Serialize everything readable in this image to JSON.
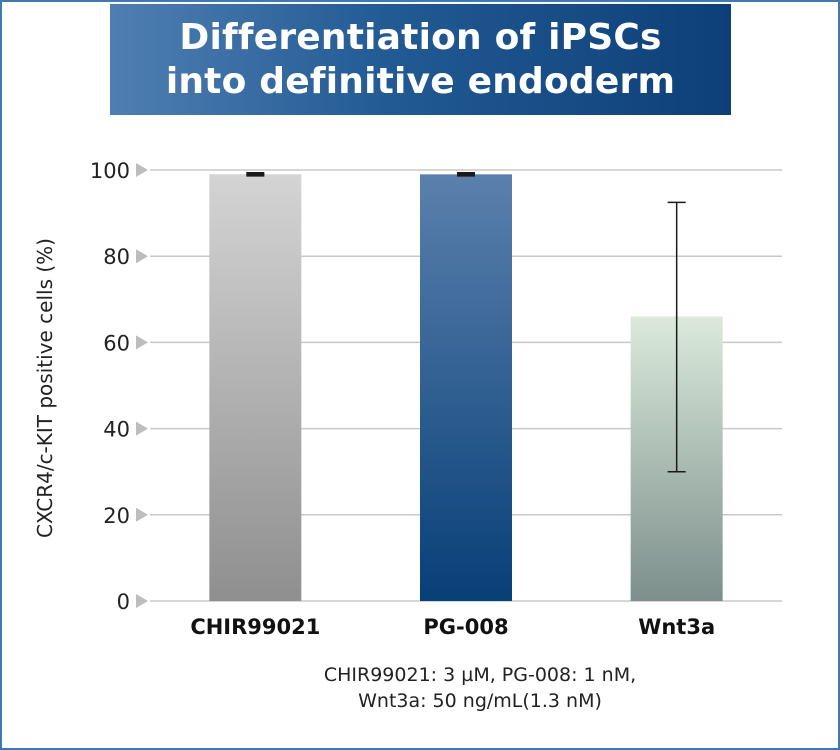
{
  "title": {
    "line1": "Differentiation of iPSCs",
    "line2": "into definitive endoderm"
  },
  "footnote": {
    "line1": "CHIR99021: 3 µM, PG-008: 1 nM,",
    "line2": "Wnt3a: 50 ng/mL(1.3 nM)"
  },
  "colors": {
    "frame": "#3f79b0",
    "title_bg_start": "#4f7fb2",
    "title_bg_end": "#0d3f78",
    "bar_chir_top": "#d4d4d4",
    "bar_chir_bottom": "#8f8f8f",
    "bar_pg_top": "#5b80ad",
    "bar_pg_bottom": "#073f77",
    "bar_wnt_top": "#dbeadb",
    "bar_wnt_bottom": "#7d8f8c",
    "grid": "#c8c8c8",
    "tick_arrow": "#bdbdbd"
  },
  "chart_data": {
    "type": "bar",
    "categories": [
      "CHIR99021",
      "PG-008",
      "Wnt3a"
    ],
    "values": [
      99,
      99,
      66
    ],
    "error_low": [
      98.8,
      98.8,
      30
    ],
    "error_high": [
      99.2,
      99.2,
      92.5
    ],
    "ylabel": "CXCR4/c-KIT positive cells (%)",
    "xlabel": "",
    "ylim": [
      0,
      100
    ],
    "yticks": [
      0,
      20,
      40,
      60,
      80,
      100
    ],
    "grid": true
  }
}
